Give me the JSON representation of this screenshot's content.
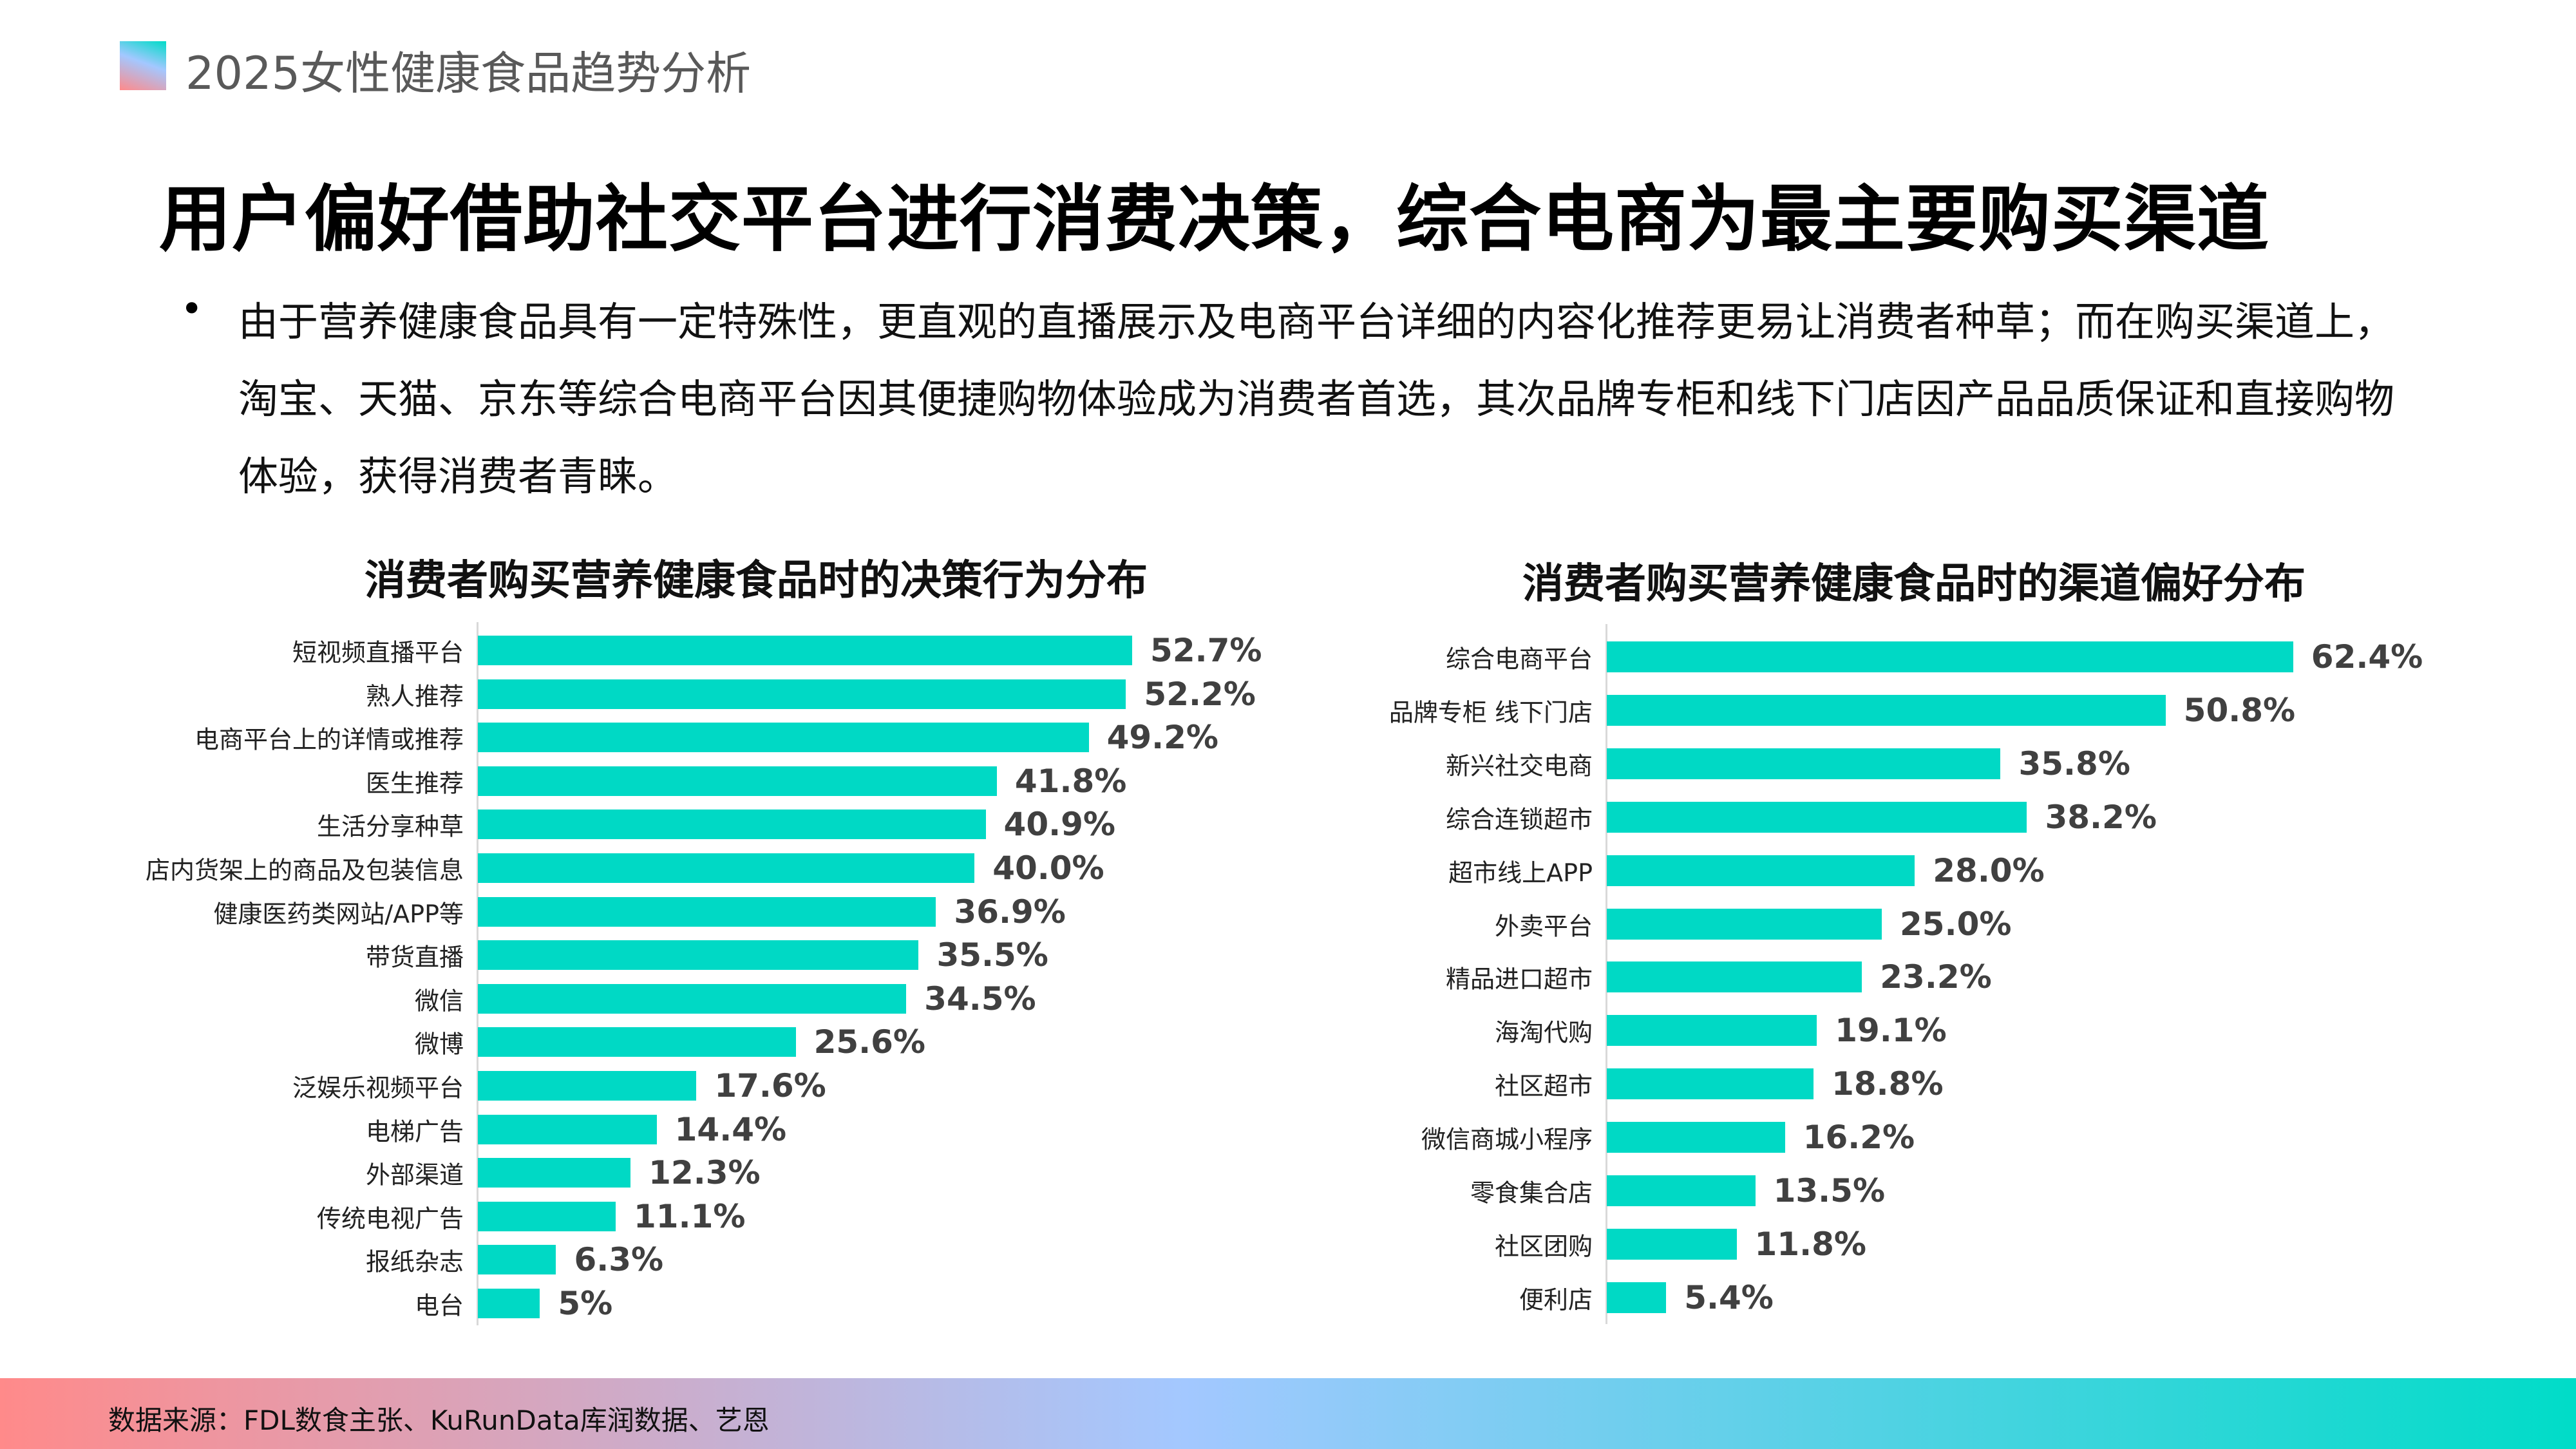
{
  "header": {
    "title": "2025女性健康食品趋势分析"
  },
  "headline": "用户偏好借助社交平台进行消费决策，综合电商为最主要购买渠道",
  "bullet": {
    "symbol": "•",
    "text": "由于营养健康食品具有一定特殊性，更直观的直播展示及电商平台详细的内容化推荐更易让消费者种草；而在购买渠道上，淘宝、天猫、京东等综合电商平台因其便捷购物体验成为消费者首选，其次品牌专柜和线下门店因产品品质保证和直接购物体验，获得消费者青睐。"
  },
  "footer": {
    "source": "数据来源：FDL数食主张、KuRunData库润数据、艺恩"
  },
  "colors": {
    "bar": "#00d9c5",
    "value_text": "#404040"
  },
  "chart_data": [
    {
      "type": "bar",
      "orientation": "horizontal",
      "title": "消费者购买营养健康食品时的决策行为分布",
      "categories": [
        "短视频直播平台",
        "熟人推荐",
        "电商平台上的详情或推荐",
        "医生推荐",
        "生活分享种草",
        "店内货架上的商品及包装信息",
        "健康医药类网站/APP等",
        "带货直播",
        "微信",
        "微博",
        "泛娱乐视频平台",
        "电梯广告",
        "外部渠道",
        "传统电视广告",
        "报纸杂志",
        "电台"
      ],
      "values": [
        52.7,
        52.2,
        49.2,
        41.8,
        40.9,
        40.0,
        36.9,
        35.5,
        34.5,
        25.6,
        17.6,
        14.4,
        12.3,
        11.1,
        6.3,
        5
      ],
      "labels": [
        "52.7%",
        "52.2%",
        "49.2%",
        "41.8%",
        "40.9%",
        "40.0%",
        "36.9%",
        "35.5%",
        "34.5%",
        "25.6%",
        "17.6%",
        "14.4%",
        "12.3%",
        "11.1%",
        "6.3%",
        "5%"
      ],
      "unit": "%",
      "grid": false
    },
    {
      "type": "bar",
      "orientation": "horizontal",
      "title": "消费者购买营养健康食品时的渠道偏好分布",
      "categories": [
        "综合电商平台",
        "品牌专柜 线下门店",
        "新兴社交电商",
        "综合连锁超市",
        "超市线上APP",
        "外卖平台",
        "精品进口超市",
        "海淘代购",
        "社区超市",
        "微信商城小程序",
        "零食集合店",
        "社区团购",
        "便利店"
      ],
      "values": [
        62.4,
        50.8,
        35.8,
        38.2,
        28.0,
        25.0,
        23.2,
        19.1,
        18.8,
        16.2,
        13.5,
        11.8,
        5.4
      ],
      "labels": [
        "62.4%",
        "50.8%",
        "35.8%",
        "38.2%",
        "28.0%",
        "25.0%",
        "23.2%",
        "19.1%",
        "18.8%",
        "16.2%",
        "13.5%",
        "11.8%",
        "5.4%"
      ],
      "unit": "%",
      "grid": false
    }
  ]
}
